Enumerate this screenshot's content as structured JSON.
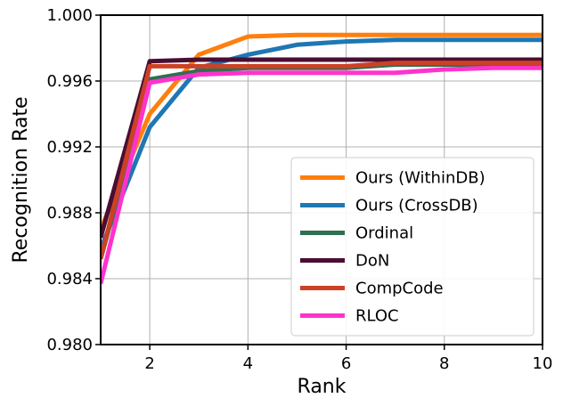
{
  "chart_data": {
    "type": "line",
    "title": "",
    "xlabel": "Rank",
    "ylabel": "Recognition Rate",
    "xlim": [
      1,
      10
    ],
    "ylim": [
      0.98,
      1.0
    ],
    "x_ticks": [
      2,
      4,
      6,
      8,
      10
    ],
    "x_tick_labels": [
      "2",
      "4",
      "6",
      "8",
      "10"
    ],
    "y_ticks": [
      0.98,
      0.984,
      0.988,
      0.992,
      0.996,
      1.0
    ],
    "y_tick_labels": [
      "0.980",
      "0.984",
      "0.988",
      "0.992",
      "0.996",
      "1.000"
    ],
    "grid": true,
    "legend_position": "lower-right",
    "x": [
      1,
      2,
      3,
      4,
      5,
      6,
      7,
      8,
      9,
      10
    ],
    "series": [
      {
        "name": "Ours (WithinDB)",
        "color": "#ff7f0e",
        "values": [
          0.987,
          0.994,
          0.9976,
          0.9987,
          0.9988,
          0.9988,
          0.9988,
          0.9988,
          0.9988,
          0.9988
        ]
      },
      {
        "name": "Ours (CrossDB)",
        "color": "#1f77b4",
        "values": [
          0.9858,
          0.9932,
          0.9968,
          0.9976,
          0.9982,
          0.9984,
          0.9985,
          0.9985,
          0.9985,
          0.9985
        ]
      },
      {
        "name": "Ordinal",
        "color": "#2e7050",
        "values": [
          0.9852,
          0.9961,
          0.9966,
          0.9968,
          0.9968,
          0.9968,
          0.997,
          0.997,
          0.997,
          0.997
        ]
      },
      {
        "name": "DoN",
        "color": "#4a0e33",
        "values": [
          0.9865,
          0.9972,
          0.9973,
          0.9973,
          0.9973,
          0.9973,
          0.9973,
          0.9973,
          0.9973,
          0.9973
        ]
      },
      {
        "name": "CompCode",
        "color": "#cc4125",
        "values": [
          0.9852,
          0.9969,
          0.9969,
          0.9969,
          0.9969,
          0.9969,
          0.9971,
          0.9971,
          0.9971,
          0.9971
        ]
      },
      {
        "name": "RLOC",
        "color": "#ff33cc",
        "values": [
          0.9837,
          0.9959,
          0.9964,
          0.9965,
          0.9965,
          0.9965,
          0.9965,
          0.9967,
          0.9968,
          0.9968
        ]
      }
    ]
  }
}
